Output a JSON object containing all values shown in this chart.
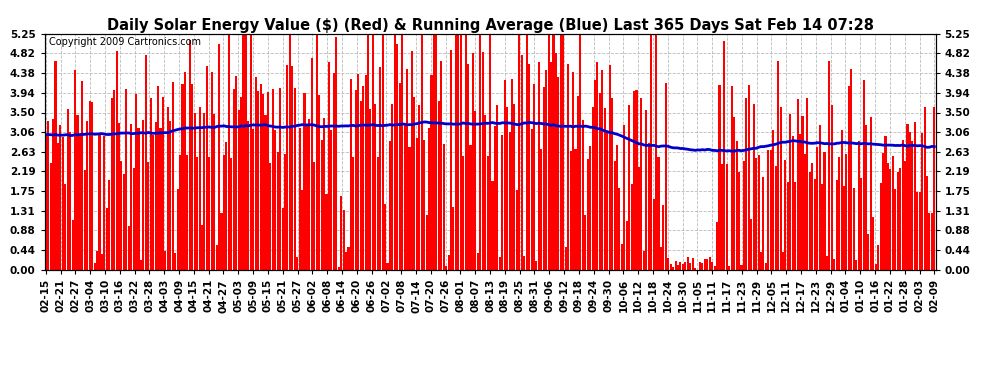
{
  "title": "Daily Solar Energy Value ($) (Red) & Running Average (Blue) Last 365 Days Sat Feb 14 07:28",
  "copyright_text": "Copyright 2009 Cartronics.com",
  "bar_color": "#ff0000",
  "line_color": "#0000cc",
  "bg_color": "#ffffff",
  "grid_color": "#aaaaaa",
  "yticks": [
    0.0,
    0.44,
    0.88,
    1.31,
    1.75,
    2.19,
    2.63,
    3.06,
    3.5,
    3.94,
    4.38,
    4.82,
    5.25
  ],
  "ymin": 0.0,
  "ymax": 5.25,
  "title_fontsize": 10.5,
  "copyright_fontsize": 7,
  "tick_fontsize": 7.5,
  "x_tick_labels": [
    "02-15",
    "02-21",
    "02-27",
    "03-04",
    "03-10",
    "03-16",
    "03-22",
    "03-28",
    "04-03",
    "04-09",
    "04-15",
    "04-21",
    "04-27",
    "05-03",
    "05-09",
    "05-15",
    "05-21",
    "05-27",
    "06-02",
    "06-08",
    "06-14",
    "06-20",
    "06-26",
    "07-02",
    "07-08",
    "07-14",
    "07-20",
    "07-26",
    "08-01",
    "08-07",
    "08-13",
    "08-19",
    "08-25",
    "08-31",
    "09-06",
    "09-12",
    "09-18",
    "09-24",
    "09-30",
    "10-06",
    "10-12",
    "10-18",
    "10-24",
    "10-30",
    "11-05",
    "11-11",
    "11-17",
    "11-23",
    "11-29",
    "12-05",
    "12-11",
    "12-17",
    "12-23",
    "12-29",
    "01-04",
    "01-10",
    "01-16",
    "01-22",
    "01-28",
    "02-03",
    "02-09"
  ]
}
